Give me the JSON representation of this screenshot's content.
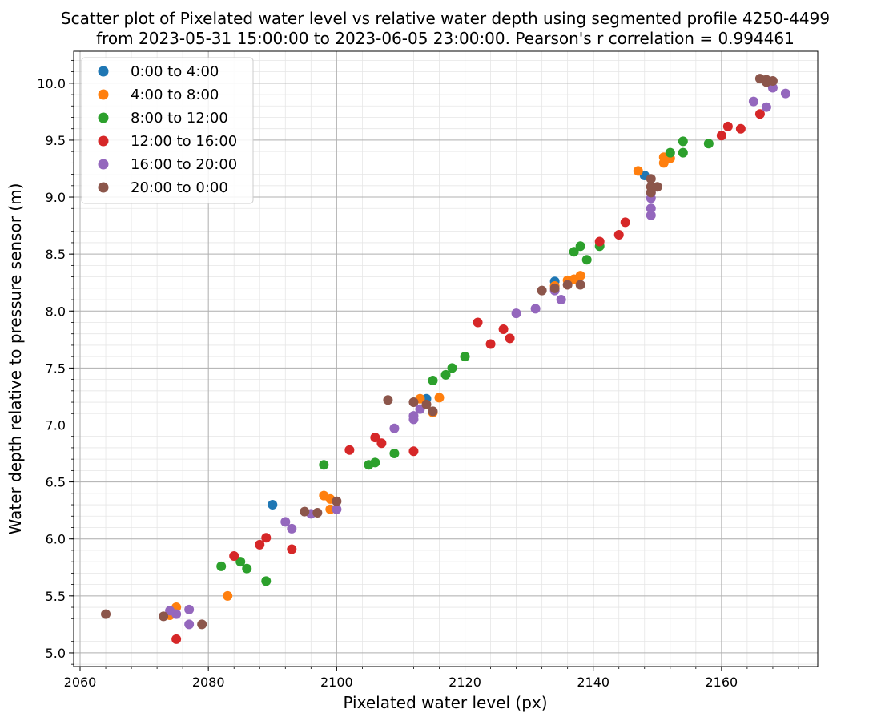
{
  "chart_data": {
    "type": "scatter",
    "title_lines": [
      "Scatter plot of Pixelated water level vs relative water depth using segmented profile 4250-4499",
      "from 2023-05-31 15:00:00 to 2023-06-05 23:00:00. Pearson's r correlation = 0.994461"
    ],
    "xlabel": "Pixelated water level (px)",
    "ylabel": "Water depth relative to pressure sensor (m)",
    "xlim": [
      2059,
      2175
    ],
    "ylim": [
      4.88,
      10.28
    ],
    "xticks": [
      2060,
      2080,
      2100,
      2120,
      2140,
      2160
    ],
    "yticks": [
      5.0,
      5.5,
      6.0,
      6.5,
      7.0,
      7.5,
      8.0,
      8.5,
      9.0,
      9.5,
      10.0
    ],
    "xtick_labels": [
      "2060",
      "2080",
      "2100",
      "2120",
      "2140",
      "2160"
    ],
    "ytick_labels": [
      "5.0",
      "5.5",
      "6.0",
      "6.5",
      "7.0",
      "7.5",
      "8.0",
      "8.5",
      "9.0",
      "9.5",
      "10.0"
    ],
    "grid": true,
    "minor_grid": true,
    "legend_position": "upper-left",
    "series": [
      {
        "name": "0:00 to 4:00",
        "color": "#1f77b4",
        "points": [
          [
            2090,
            6.3
          ],
          [
            2134,
            8.26
          ],
          [
            2148,
            9.19
          ],
          [
            2114,
            7.23
          ]
        ]
      },
      {
        "name": "4:00 to 8:00",
        "color": "#ff7f0e",
        "points": [
          [
            2074,
            5.33
          ],
          [
            2075,
            5.4
          ],
          [
            2083,
            5.5
          ],
          [
            2098,
            6.38
          ],
          [
            2099,
            6.35
          ],
          [
            2099,
            6.26
          ],
          [
            2113,
            7.23
          ],
          [
            2116,
            7.24
          ],
          [
            2115,
            7.11
          ],
          [
            2134,
            8.22
          ],
          [
            2136,
            8.27
          ],
          [
            2137,
            8.28
          ],
          [
            2138,
            8.31
          ],
          [
            2147,
            9.23
          ],
          [
            2151,
            9.3
          ],
          [
            2151,
            9.35
          ],
          [
            2152,
            9.34
          ]
        ]
      },
      {
        "name": "8:00 to 12:00",
        "color": "#2ca02c",
        "points": [
          [
            2082,
            5.76
          ],
          [
            2085,
            5.8
          ],
          [
            2086,
            5.74
          ],
          [
            2089,
            5.63
          ],
          [
            2098,
            6.65
          ],
          [
            2105,
            6.65
          ],
          [
            2106,
            6.67
          ],
          [
            2109,
            6.75
          ],
          [
            2115,
            7.39
          ],
          [
            2117,
            7.44
          ],
          [
            2118,
            7.5
          ],
          [
            2120,
            7.6
          ],
          [
            2137,
            8.52
          ],
          [
            2138,
            8.57
          ],
          [
            2139,
            8.45
          ],
          [
            2141,
            8.57
          ],
          [
            2152,
            9.39
          ],
          [
            2154,
            9.39
          ],
          [
            2154,
            9.49
          ],
          [
            2158,
            9.47
          ]
        ]
      },
      {
        "name": "12:00 to 16:00",
        "color": "#d62728",
        "points": [
          [
            2075,
            5.12
          ],
          [
            2084,
            5.85
          ],
          [
            2088,
            5.95
          ],
          [
            2089,
            6.01
          ],
          [
            2093,
            5.91
          ],
          [
            2102,
            6.78
          ],
          [
            2106,
            6.89
          ],
          [
            2107,
            6.84
          ],
          [
            2112,
            6.77
          ],
          [
            2122,
            7.9
          ],
          [
            2124,
            7.71
          ],
          [
            2126,
            7.84
          ],
          [
            2127,
            7.76
          ],
          [
            2141,
            8.61
          ],
          [
            2144,
            8.67
          ],
          [
            2145,
            8.78
          ],
          [
            2160,
            9.54
          ],
          [
            2161,
            9.62
          ],
          [
            2163,
            9.6
          ],
          [
            2166,
            9.73
          ]
        ]
      },
      {
        "name": "16:00 to 20:00",
        "color": "#9467bd",
        "points": [
          [
            2074,
            5.37
          ],
          [
            2075,
            5.34
          ],
          [
            2077,
            5.25
          ],
          [
            2077,
            5.38
          ],
          [
            2092,
            6.15
          ],
          [
            2093,
            6.09
          ],
          [
            2096,
            6.22
          ],
          [
            2100,
            6.26
          ],
          [
            2109,
            6.97
          ],
          [
            2112,
            7.05
          ],
          [
            2112,
            7.08
          ],
          [
            2113,
            7.14
          ],
          [
            2128,
            7.98
          ],
          [
            2131,
            8.02
          ],
          [
            2134,
            8.18
          ],
          [
            2135,
            8.1
          ],
          [
            2149,
            8.84
          ],
          [
            2149,
            8.9
          ],
          [
            2149,
            8.99
          ],
          [
            2149,
            9.04
          ],
          [
            2165,
            9.84
          ],
          [
            2167,
            9.79
          ],
          [
            2168,
            9.96
          ],
          [
            2170,
            9.91
          ]
        ]
      },
      {
        "name": "20:00 to 0:00",
        "color": "#8c564b",
        "points": [
          [
            2064,
            5.34
          ],
          [
            2073,
            5.32
          ],
          [
            2079,
            5.25
          ],
          [
            2095,
            6.24
          ],
          [
            2097,
            6.23
          ],
          [
            2100,
            6.33
          ],
          [
            2108,
            7.22
          ],
          [
            2112,
            7.2
          ],
          [
            2114,
            7.18
          ],
          [
            2115,
            7.12
          ],
          [
            2132,
            8.18
          ],
          [
            2134,
            8.2
          ],
          [
            2136,
            8.23
          ],
          [
            2138,
            8.23
          ],
          [
            2149,
            9.16
          ],
          [
            2149,
            9.09
          ],
          [
            2150,
            9.09
          ],
          [
            2149,
            9.04
          ],
          [
            2166,
            10.04
          ],
          [
            2167,
            10.03
          ],
          [
            2168,
            10.02
          ],
          [
            2167,
            10.01
          ]
        ]
      }
    ]
  }
}
